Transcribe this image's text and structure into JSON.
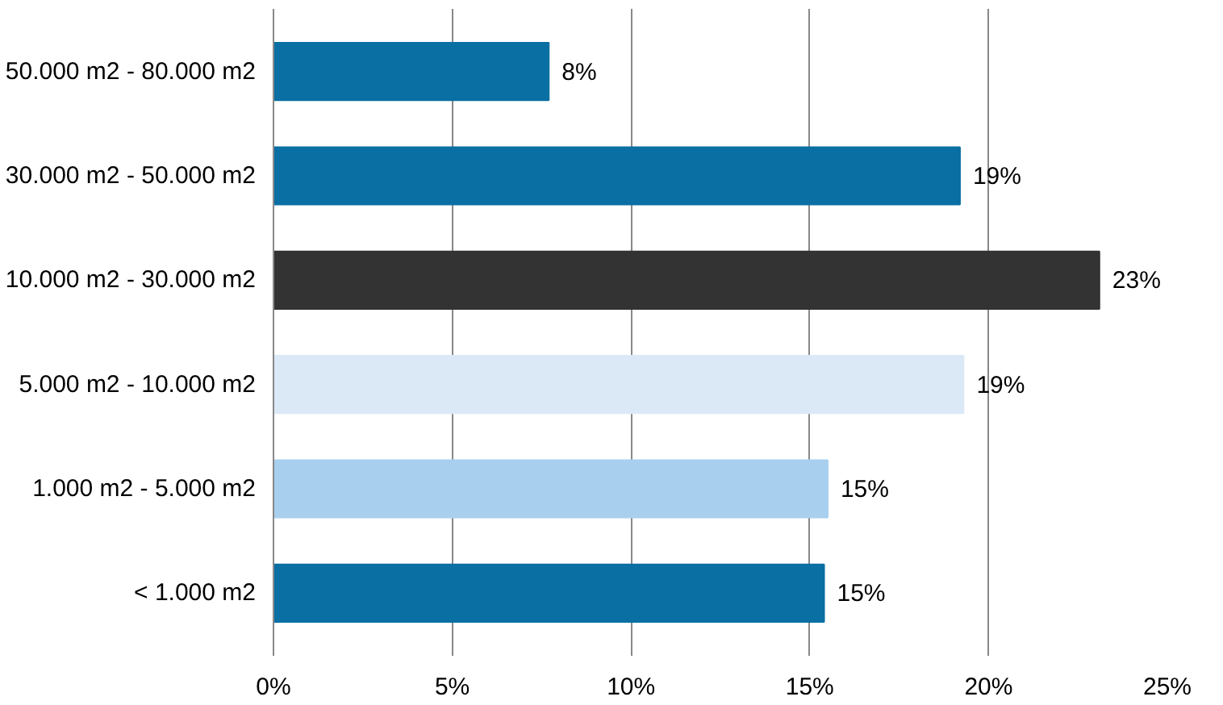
{
  "chart_data": {
    "type": "bar",
    "orientation": "horizontal",
    "categories": [
      "50.000 m2 - 80.000 m2",
      "30.000 m2 - 50.000 m2",
      "10.000 m2 - 30.000 m2",
      "5.000 m2 - 10.000 m2",
      "1.000 m2 - 5.000 m2",
      "< 1.000 m2"
    ],
    "values": [
      7.7,
      19.2,
      23.1,
      19.3,
      15.5,
      15.4
    ],
    "value_labels": [
      "8%",
      "19%",
      "23%",
      "19%",
      "15%",
      "15%"
    ],
    "colors": [
      "#0a6fa3",
      "#0a6fa3",
      "#333333",
      "#dbe9f7",
      "#a8cfee",
      "#0a6fa3"
    ],
    "xlim": [
      0,
      25
    ],
    "xticks": [
      {
        "value": 0,
        "label": "0%"
      },
      {
        "value": 5,
        "label": "5%"
      },
      {
        "value": 10,
        "label": "10%"
      },
      {
        "value": 15,
        "label": "15%"
      },
      {
        "value": 20,
        "label": "20%"
      },
      {
        "value": 25,
        "label": "25%"
      }
    ],
    "grid": "x"
  }
}
